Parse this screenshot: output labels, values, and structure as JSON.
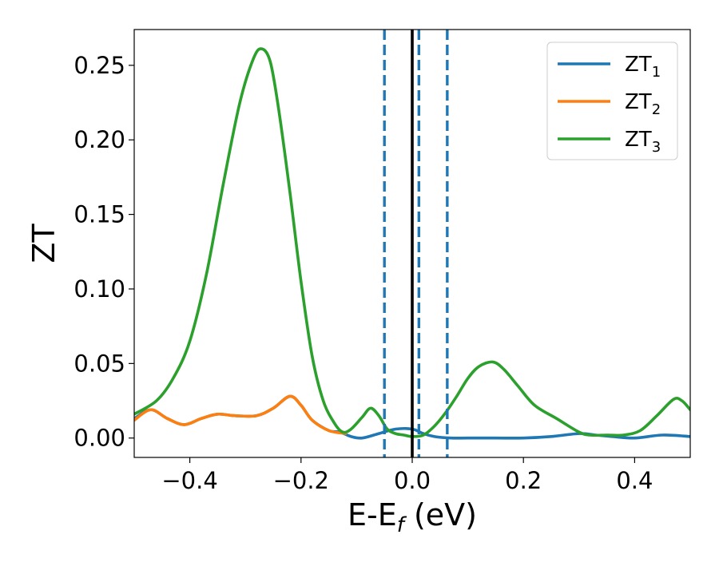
{
  "chart_data": {
    "type": "line",
    "xlabel_main": "E-E",
    "xlabel_sub": "f",
    "xlabel_unit": " (eV)",
    "ylabel": "ZT",
    "xlim": [
      -0.5,
      0.5
    ],
    "ylim": [
      -0.013,
      0.274
    ],
    "x_ticks": [
      -0.4,
      -0.2,
      0.0,
      0.2,
      0.4
    ],
    "x_tick_labels": [
      "−0.4",
      "−0.2",
      "0.0",
      "0.2",
      "0.4"
    ],
    "y_ticks": [
      0.0,
      0.05,
      0.1,
      0.15,
      0.2,
      0.25
    ],
    "y_tick_labels": [
      "0.00",
      "0.05",
      "0.10",
      "0.15",
      "0.20",
      "0.25"
    ],
    "grid": false,
    "legend_position": "top-right",
    "vertical_lines": [
      {
        "x": -0.05,
        "style": "dashed",
        "color": "#1f77b4"
      },
      {
        "x": 0.0,
        "style": "solid",
        "color": "#000000"
      },
      {
        "x": 0.012,
        "style": "dashed",
        "color": "#1f77b4"
      },
      {
        "x": 0.063,
        "style": "dashed",
        "color": "#1f77b4"
      }
    ],
    "series": [
      {
        "name_main": "ZT",
        "name_sub": "1",
        "color": "#1f77b4",
        "points": [
          [
            -0.5,
            0.013
          ],
          [
            -0.47,
            0.019
          ],
          [
            -0.44,
            0.013
          ],
          [
            -0.41,
            0.009
          ],
          [
            -0.38,
            0.013
          ],
          [
            -0.35,
            0.016
          ],
          [
            -0.32,
            0.015
          ],
          [
            -0.28,
            0.015
          ],
          [
            -0.25,
            0.02
          ],
          [
            -0.22,
            0.028
          ],
          [
            -0.2,
            0.022
          ],
          [
            -0.18,
            0.012
          ],
          [
            -0.15,
            0.005
          ],
          [
            -0.13,
            0.004
          ],
          [
            -0.11,
            0.001
          ],
          [
            -0.09,
            0.0
          ],
          [
            -0.06,
            0.003
          ],
          [
            -0.03,
            0.006
          ],
          [
            0.0,
            0.006
          ],
          [
            0.02,
            0.003
          ],
          [
            0.04,
            0.001
          ],
          [
            0.07,
            0.0
          ],
          [
            0.1,
            0.0
          ],
          [
            0.15,
            0.0
          ],
          [
            0.2,
            0.0
          ],
          [
            0.25,
            0.001
          ],
          [
            0.3,
            0.003
          ],
          [
            0.33,
            0.002
          ],
          [
            0.36,
            0.001
          ],
          [
            0.4,
            0.0
          ],
          [
            0.45,
            0.002
          ],
          [
            0.5,
            0.001
          ]
        ]
      },
      {
        "name_main": "ZT",
        "name_sub": "2",
        "color": "#ff7f0e",
        "points": [
          [
            -0.5,
            0.012
          ],
          [
            -0.47,
            0.019
          ],
          [
            -0.44,
            0.013
          ],
          [
            -0.41,
            0.009
          ],
          [
            -0.38,
            0.013
          ],
          [
            -0.35,
            0.016
          ],
          [
            -0.32,
            0.015
          ],
          [
            -0.28,
            0.015
          ],
          [
            -0.25,
            0.02
          ],
          [
            -0.22,
            0.028
          ],
          [
            -0.2,
            0.022
          ],
          [
            -0.18,
            0.012
          ],
          [
            -0.15,
            0.005
          ],
          [
            -0.12,
            0.003
          ]
        ]
      },
      {
        "name_main": "ZT",
        "name_sub": "3",
        "color": "#2ca02c",
        "points": [
          [
            -0.5,
            0.016
          ],
          [
            -0.46,
            0.025
          ],
          [
            -0.43,
            0.04
          ],
          [
            -0.4,
            0.065
          ],
          [
            -0.37,
            0.11
          ],
          [
            -0.34,
            0.17
          ],
          [
            -0.31,
            0.225
          ],
          [
            -0.285,
            0.255
          ],
          [
            -0.27,
            0.261
          ],
          [
            -0.255,
            0.252
          ],
          [
            -0.24,
            0.22
          ],
          [
            -0.22,
            0.165
          ],
          [
            -0.2,
            0.105
          ],
          [
            -0.18,
            0.055
          ],
          [
            -0.16,
            0.025
          ],
          [
            -0.14,
            0.01
          ],
          [
            -0.125,
            0.004
          ],
          [
            -0.11,
            0.006
          ],
          [
            -0.09,
            0.014
          ],
          [
            -0.075,
            0.02
          ],
          [
            -0.06,
            0.015
          ],
          [
            -0.045,
            0.006
          ],
          [
            -0.03,
            0.003
          ],
          [
            -0.015,
            0.002
          ],
          [
            0.0,
            0.001
          ],
          [
            0.02,
            0.002
          ],
          [
            0.04,
            0.008
          ],
          [
            0.06,
            0.017
          ],
          [
            0.08,
            0.028
          ],
          [
            0.1,
            0.04
          ],
          [
            0.12,
            0.048
          ],
          [
            0.145,
            0.051
          ],
          [
            0.165,
            0.046
          ],
          [
            0.19,
            0.035
          ],
          [
            0.22,
            0.022
          ],
          [
            0.26,
            0.013
          ],
          [
            0.3,
            0.004
          ],
          [
            0.32,
            0.002
          ],
          [
            0.35,
            0.002
          ],
          [
            0.38,
            0.002
          ],
          [
            0.41,
            0.005
          ],
          [
            0.44,
            0.015
          ],
          [
            0.47,
            0.026
          ],
          [
            0.485,
            0.025
          ],
          [
            0.5,
            0.019
          ]
        ]
      }
    ]
  }
}
